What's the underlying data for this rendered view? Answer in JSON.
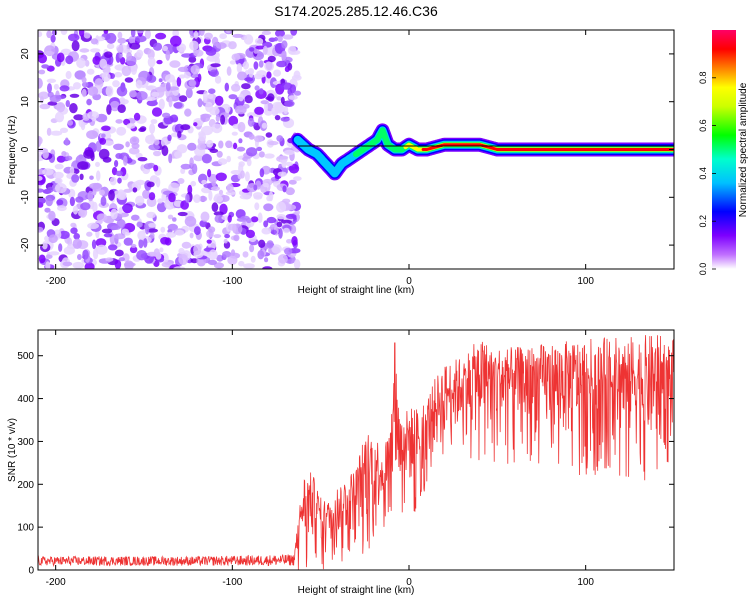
{
  "figure_title": "S174.2025.285.12.46.C36",
  "chart_data": [
    {
      "type": "heatmap",
      "title": "S174.2025.285.12.46.C36",
      "xlabel": "Height of straight line (km)",
      "ylabel": "Frequency (Hz)",
      "xlim": [
        -210,
        150
      ],
      "ylim": [
        -25,
        25
      ],
      "xticks": [
        -200,
        -100,
        0,
        100
      ],
      "yticks": [
        -20,
        -10,
        0,
        10,
        20
      ],
      "colorbar": {
        "label": "Normalized spectral amplitude",
        "range": [
          0,
          1
        ],
        "ticks": [
          0.0,
          0.2,
          0.4,
          0.6,
          0.8
        ],
        "tick_labels": [
          "0.0",
          "0.2",
          "0.4",
          "0.6",
          "0.8"
        ],
        "colormap": "purple-blue-cyan-green-yellow-orange-red-magenta",
        "stops": [
          "#ffffff",
          "#7d00ff",
          "#0000ff",
          "#00ffff",
          "#00ff00",
          "#ffff00",
          "#ff8000",
          "#ff0000",
          "#ff0066"
        ]
      },
      "noise_region_x": [
        -210,
        -63
      ],
      "ridge": {
        "x": [
          -63,
          -57,
          -52,
          -47,
          -42,
          -38,
          -34,
          -30,
          -26,
          -22,
          -18,
          -15,
          -12,
          -8,
          -4,
          0,
          5,
          10,
          20,
          30,
          40,
          50,
          60,
          80,
          100,
          120,
          150
        ],
        "frequency": [
          2,
          0,
          -1,
          -3,
          -5,
          -3,
          -2,
          -1,
          0,
          1,
          2,
          4,
          1,
          0,
          0,
          1,
          0,
          0,
          1,
          1,
          1,
          0,
          0,
          0,
          0,
          0,
          0
        ],
        "peak_amplitude": [
          0.3,
          0.3,
          0.35,
          0.35,
          0.4,
          0.4,
          0.45,
          0.5,
          0.5,
          0.55,
          0.55,
          0.6,
          0.6,
          0.65,
          0.7,
          0.8,
          0.85,
          0.95,
          0.95,
          0.95,
          0.95,
          0.95,
          0.95,
          0.95,
          0.95,
          0.95,
          0.95
        ]
      },
      "reference_line_frequency": 0
    },
    {
      "type": "line",
      "xlabel": "Height of straight line (km)",
      "ylabel": "SNR (10 * v/v)",
      "xlim": [
        -210,
        150
      ],
      "ylim": [
        0,
        560
      ],
      "xticks": [
        -200,
        -100,
        0,
        100
      ],
      "yticks": [
        0,
        100,
        200,
        300,
        400,
        500
      ],
      "series": [
        {
          "name": "SNR",
          "color": "#ee3333",
          "x": [
            -210,
            -180,
            -150,
            -120,
            -90,
            -65,
            -60,
            -55,
            -50,
            -45,
            -40,
            -35,
            -30,
            -25,
            -20,
            -15,
            -10,
            -8,
            -5,
            0,
            5,
            10,
            15,
            20,
            25,
            30,
            40,
            50,
            60,
            80,
            100,
            120,
            140,
            150
          ],
          "baseline": [
            15,
            15,
            15,
            15,
            15,
            17,
            40,
            50,
            60,
            60,
            60,
            70,
            80,
            90,
            110,
            140,
            150,
            150,
            170,
            180,
            200,
            240,
            260,
            290,
            300,
            310,
            310,
            310,
            300,
            290,
            280,
            270,
            260,
            250
          ],
          "upper_envelope": [
            30,
            30,
            30,
            30,
            32,
            35,
            220,
            230,
            170,
            160,
            200,
            220,
            240,
            320,
            330,
            280,
            350,
            530,
            360,
            380,
            380,
            400,
            450,
            480,
            490,
            500,
            540,
            520,
            520,
            530,
            540,
            545,
            550,
            540
          ]
        }
      ],
      "spike": {
        "x": -8,
        "y": 530
      }
    }
  ],
  "panel_top": {
    "xaxis": {
      "label": "Height of straight line (km)",
      "ticks": [
        "-200",
        "-100",
        "0",
        "100"
      ]
    },
    "yaxis": {
      "label": "Frequency (Hz)",
      "ticks": [
        "-20",
        "-10",
        "0",
        "10",
        "20"
      ]
    }
  },
  "panel_bottom": {
    "xaxis": {
      "label": "Height of straight line (km)",
      "ticks": [
        "-200",
        "-100",
        "0",
        "100"
      ]
    },
    "yaxis": {
      "label": "SNR (10 * v/v)",
      "ticks": [
        "0",
        "100",
        "200",
        "300",
        "400",
        "500"
      ]
    }
  },
  "colorbar": {
    "label": "Normalized spectral amplitude",
    "ticks": [
      "0.0",
      "0.2",
      "0.4",
      "0.6",
      "0.8"
    ]
  }
}
